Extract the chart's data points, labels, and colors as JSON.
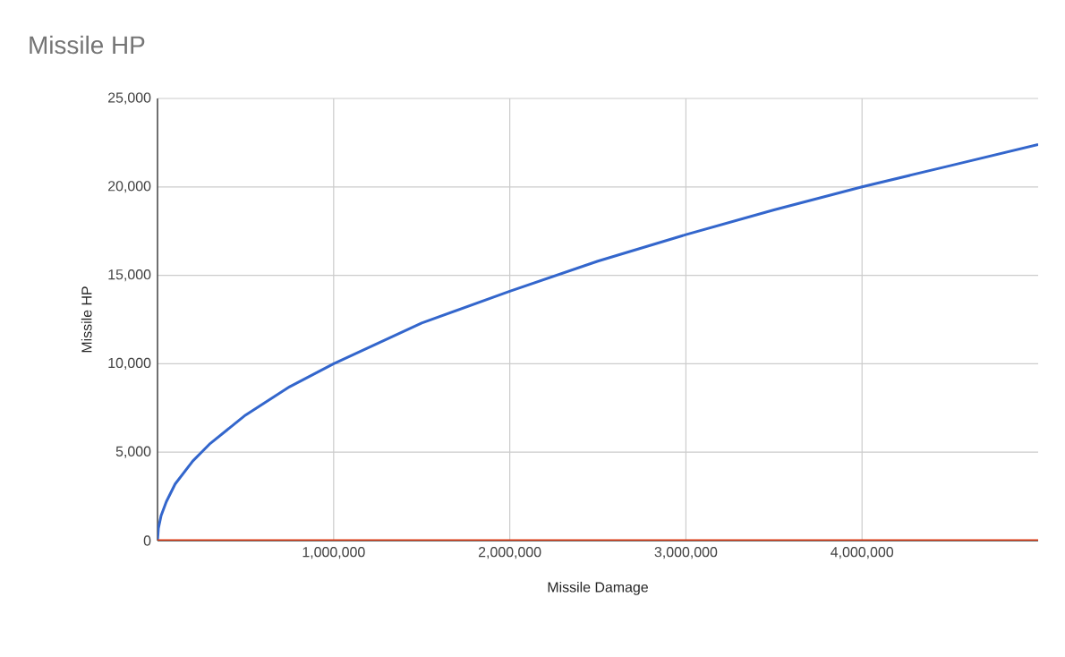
{
  "chart_data": {
    "type": "line",
    "title": "Missile HP",
    "xlabel": "Missile Damage",
    "ylabel": "Missile HP",
    "x": [
      0,
      5000,
      20000,
      50000,
      100000,
      200000,
      300000,
      500000,
      750000,
      1000000,
      1500000,
      2000000,
      2500000,
      3000000,
      3500000,
      4000000,
      4500000,
      5000000
    ],
    "series": [
      {
        "color": "#3366cc",
        "values": [
          0,
          700,
          1400,
          2200,
          3200,
          4500,
          5500,
          7100,
          8700,
          10000,
          12300,
          14100,
          15800,
          17300,
          18700,
          20000,
          21200,
          22400
        ]
      },
      {
        "color": "#dc3912",
        "x": [
          0,
          5000000
        ],
        "values": [
          0,
          0
        ]
      }
    ],
    "xlim": [
      0,
      5000000
    ],
    "xticks": [
      {
        "value": 1000000,
        "label": "1,000,000"
      },
      {
        "value": 2000000,
        "label": "2,000,000"
      },
      {
        "value": 3000000,
        "label": "3,000,000"
      },
      {
        "value": 4000000,
        "label": "4,000,000"
      }
    ],
    "ylim": [
      0,
      25000
    ],
    "yticks": [
      0,
      {
        "value": 5000,
        "label": "5,000"
      },
      {
        "value": 10000,
        "label": "10,000"
      },
      {
        "value": 15000,
        "label": "15,000"
      },
      {
        "value": 20000,
        "label": "20,000"
      },
      {
        "value": 25000,
        "label": "25,000"
      }
    ],
    "grid": true
  }
}
